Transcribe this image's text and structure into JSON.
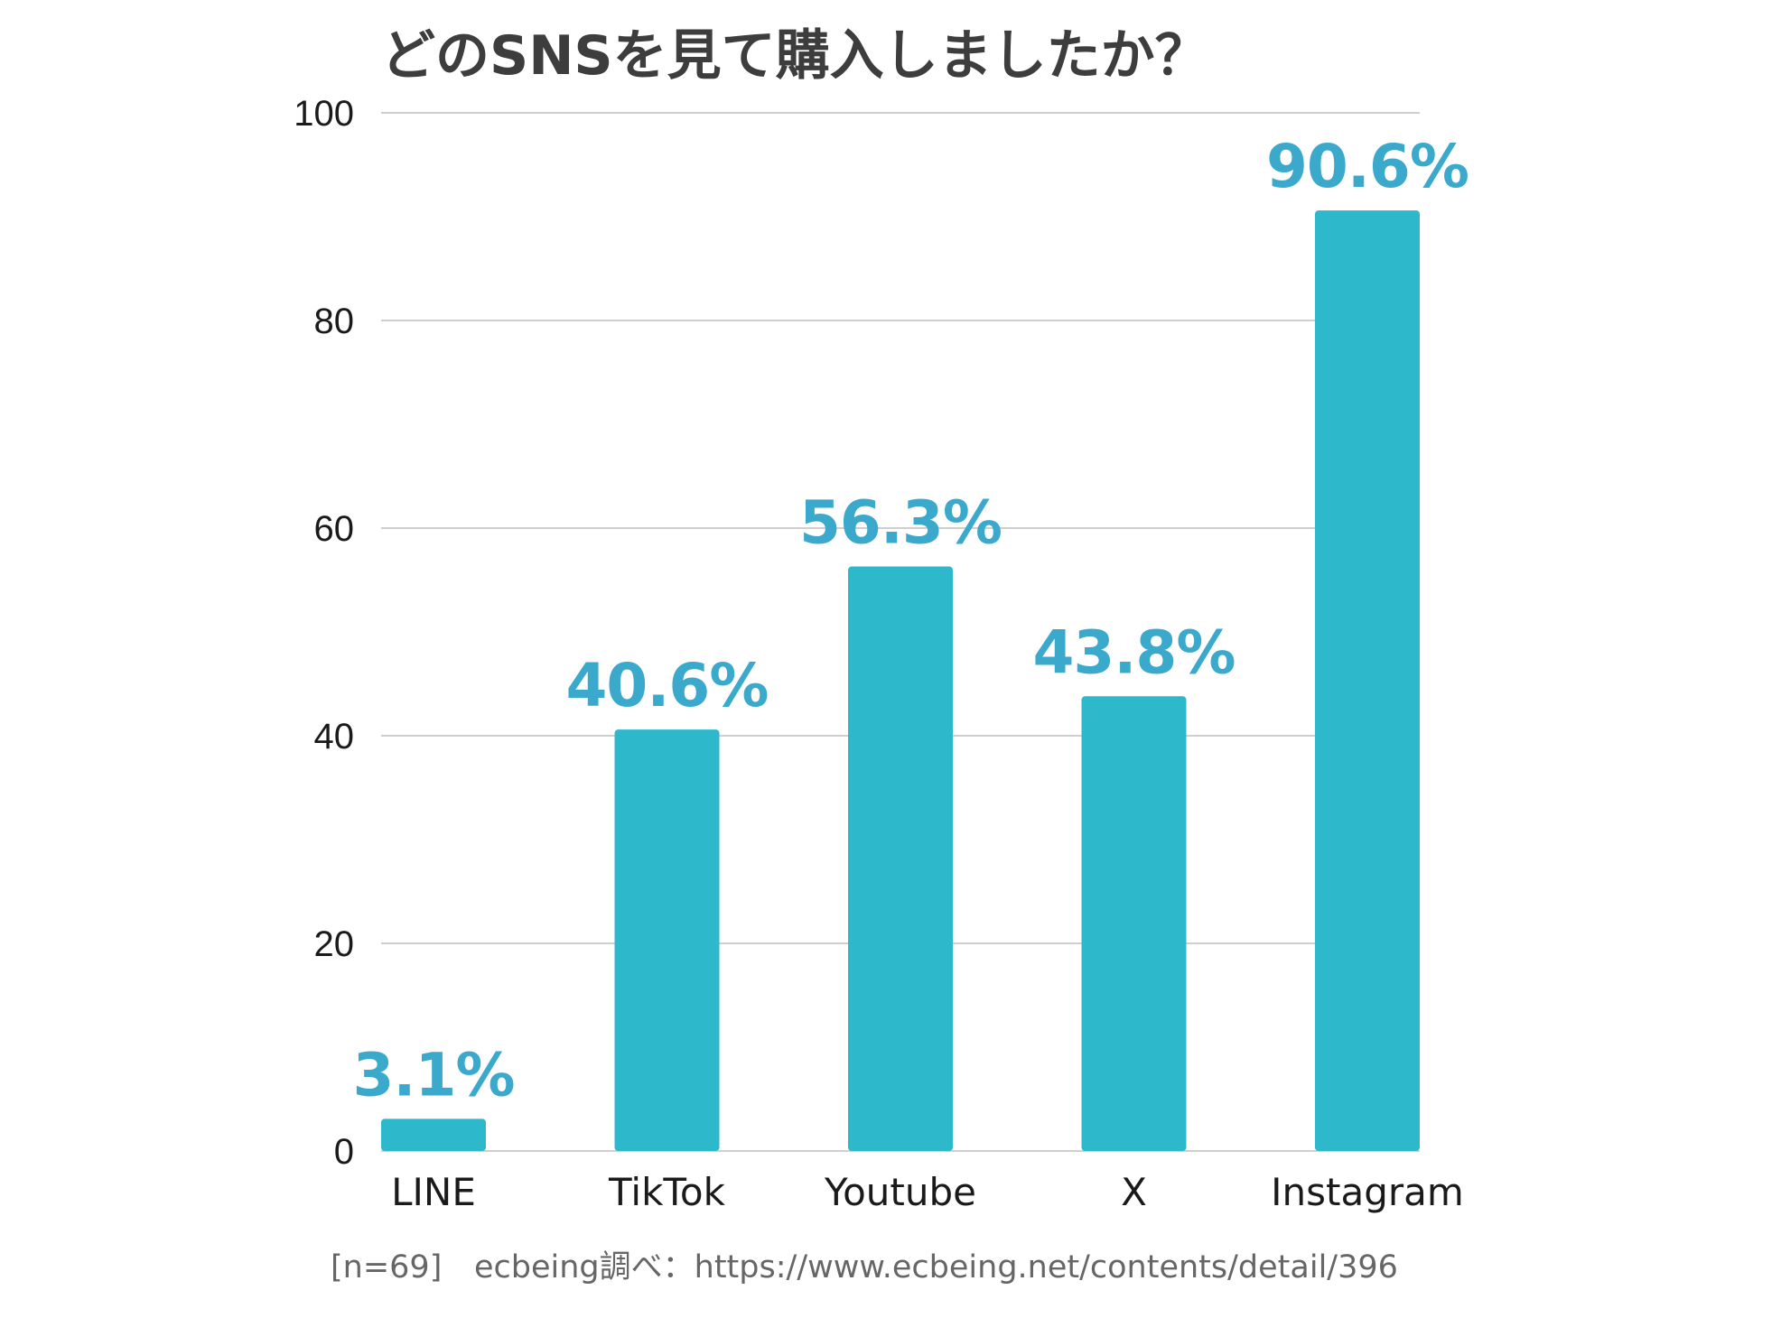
{
  "chart_data": {
    "type": "bar",
    "title": "どのSNSを見て購入しましたか？",
    "categories": [
      "LINE",
      "TikTok",
      "Youtube",
      "X",
      "Instagram"
    ],
    "values": [
      3.1,
      40.6,
      56.3,
      43.8,
      90.6
    ],
    "data_labels": [
      "3.1%",
      "40.6%",
      "56.3%",
      "43.8%",
      "90.6%"
    ],
    "ylim": [
      0,
      100
    ],
    "yticks": [
      0,
      20,
      40,
      60,
      80,
      100
    ],
    "xlabel": "",
    "ylabel": "",
    "grid": true,
    "legend": "none",
    "bar_color": "#2db8cc",
    "label_color": "#3ba9cb"
  },
  "footnote": {
    "sample": "[n=69]",
    "source": "ecbeing調べ：https://www.ecbeing.net/contents/detail/396"
  }
}
